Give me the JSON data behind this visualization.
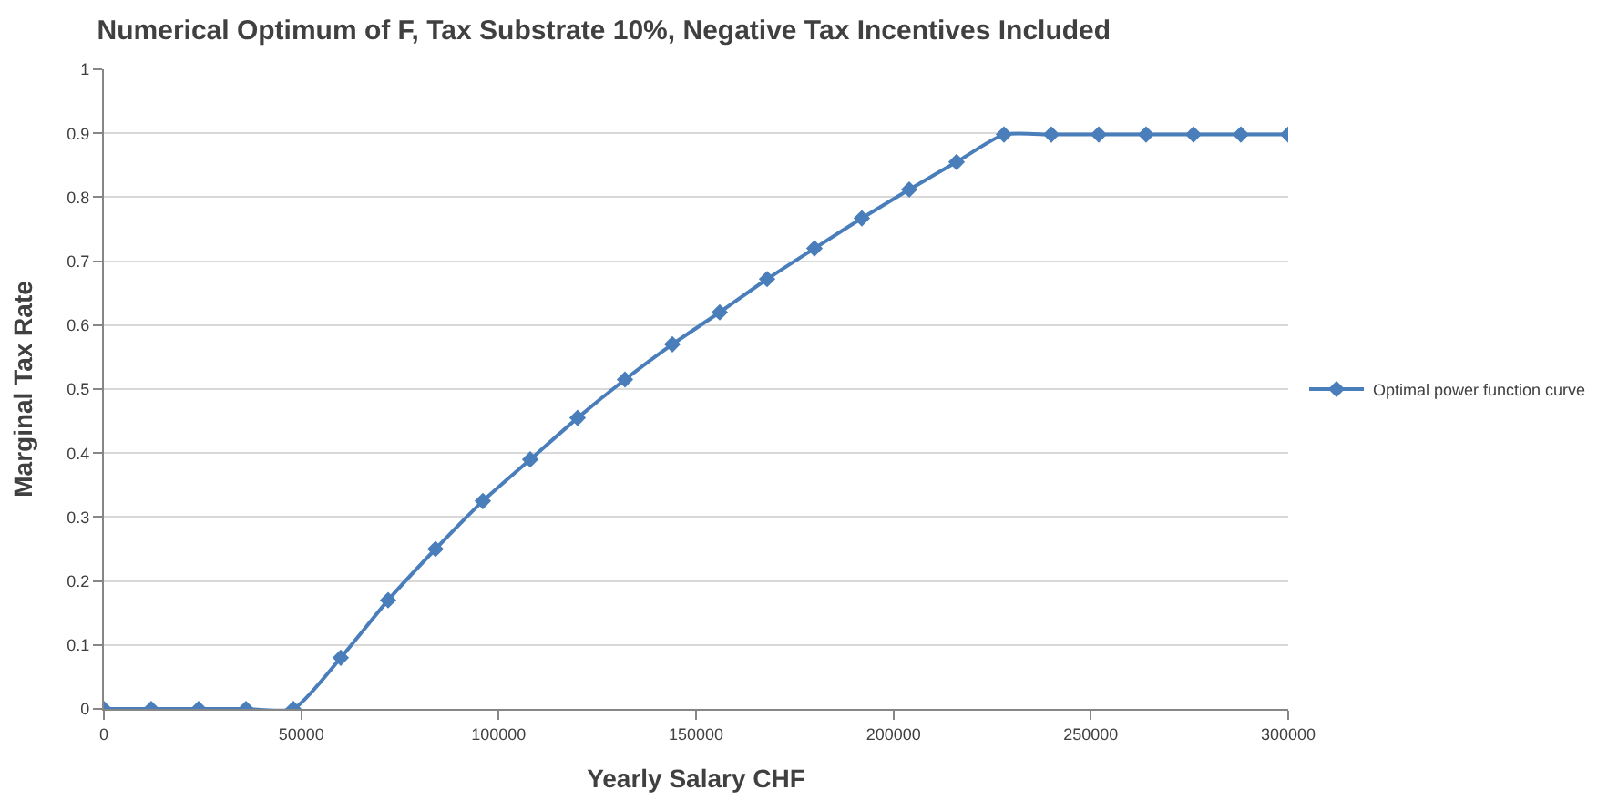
{
  "chart_data": {
    "type": "line",
    "title": "Numerical Optimum of F, Tax Substrate 10%, Negative Tax Incentives Included",
    "xlabel": "Yearly Salary CHF",
    "ylabel": "Marginal Tax Rate",
    "x": [
      0,
      12000,
      24000,
      36000,
      48000,
      60000,
      72000,
      84000,
      96000,
      108000,
      120000,
      132000,
      144000,
      156000,
      168000,
      180000,
      192000,
      204000,
      216000,
      228000,
      240000,
      252000,
      264000,
      276000,
      288000,
      300000
    ],
    "series": [
      {
        "name": "Optimal power function curve",
        "color": "#4a7ebb",
        "values": [
          0,
          0,
          0,
          0,
          0,
          0.08,
          0.17,
          0.25,
          0.325,
          0.39,
          0.455,
          0.515,
          0.57,
          0.62,
          0.672,
          0.72,
          0.767,
          0.812,
          0.855,
          0.898,
          0.898,
          0.898,
          0.898,
          0.898,
          0.898,
          0.898
        ]
      }
    ],
    "xlim": [
      0,
      300000
    ],
    "xticks": [
      0,
      50000,
      100000,
      150000,
      200000,
      250000,
      300000
    ],
    "ylim": [
      0,
      1
    ],
    "yticks": [
      0,
      0.1,
      0.2,
      0.3,
      0.4,
      0.5,
      0.6,
      0.7,
      0.8,
      0.9,
      1
    ],
    "grid": "y",
    "legend": "right",
    "marker": "diamond",
    "line_style": "solid"
  }
}
